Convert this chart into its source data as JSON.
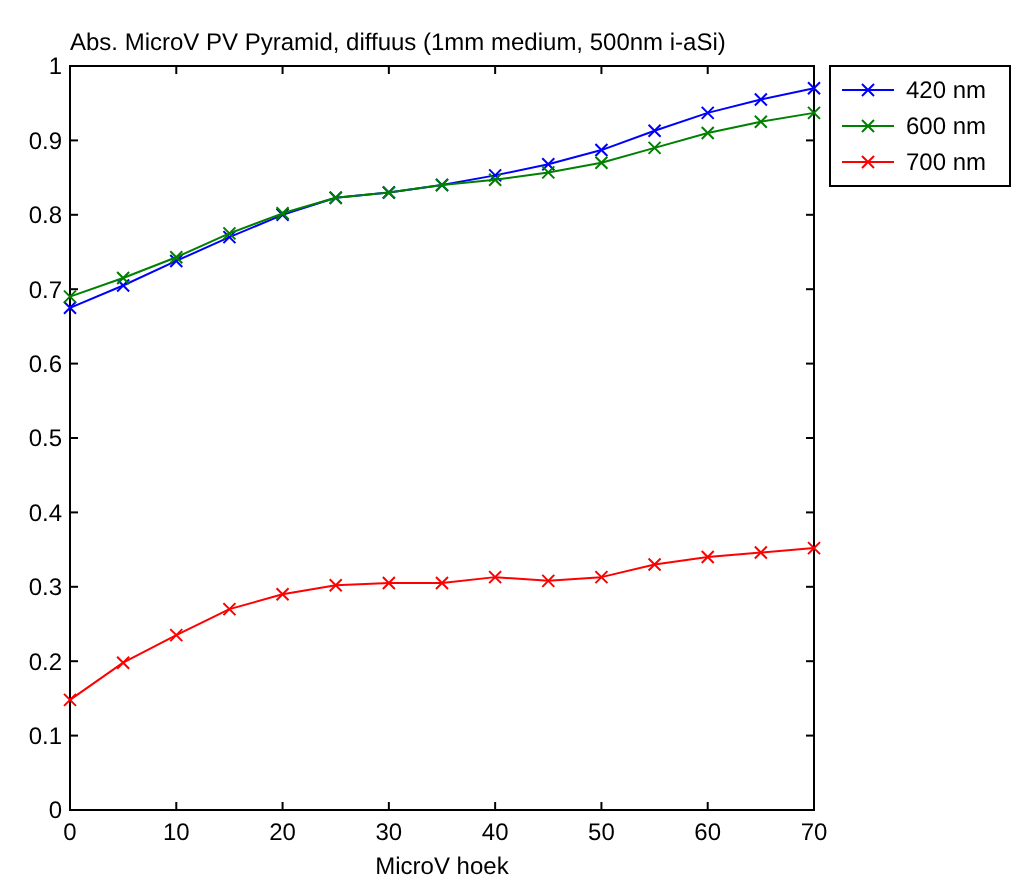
{
  "chart_data": {
    "type": "line",
    "title": "Abs. MicroV PV Pyramid, diffuus (1mm medium, 500nm i-aSi)",
    "xlabel": "MicroV hoek",
    "x": [
      0,
      5,
      10,
      15,
      20,
      25,
      30,
      35,
      40,
      45,
      50,
      55,
      60,
      65,
      70
    ],
    "series": [
      {
        "name": "420 nm",
        "color": "#0000ff",
        "values": [
          0.675,
          0.705,
          0.738,
          0.77,
          0.8,
          0.823,
          0.83,
          0.84,
          0.853,
          0.868,
          0.887,
          0.913,
          0.937,
          0.955,
          0.97
        ]
      },
      {
        "name": "600 nm",
        "color": "#008000",
        "values": [
          0.69,
          0.715,
          0.743,
          0.775,
          0.802,
          0.823,
          0.83,
          0.84,
          0.847,
          0.857,
          0.87,
          0.89,
          0.91,
          0.925,
          0.937
        ]
      },
      {
        "name": "700 nm",
        "color": "#ff0000",
        "values": [
          0.148,
          0.198,
          0.235,
          0.27,
          0.29,
          0.302,
          0.305,
          0.305,
          0.313,
          0.308,
          0.313,
          0.33,
          0.34,
          0.346,
          0.352
        ]
      }
    ],
    "xlim": [
      0,
      70
    ],
    "xticks": [
      0,
      10,
      20,
      30,
      40,
      50,
      60,
      70
    ],
    "ylim": [
      0,
      1
    ],
    "yticks": [
      0,
      0.1,
      0.2,
      0.3,
      0.4,
      0.5,
      0.6,
      0.7,
      0.8,
      0.9,
      1
    ],
    "grid": false,
    "legend": "top right",
    "marker": "cross",
    "line_style": "solid"
  }
}
